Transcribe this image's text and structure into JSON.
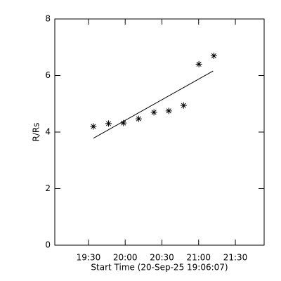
{
  "chart_data": {
    "type": "scatter",
    "xlabel": "Start Time (20-Sep-25 19:06:07)",
    "ylabel": "R/Rs",
    "x": [
      1174,
      1186.4,
      1198.6,
      1211,
      1223.5,
      1235.6,
      1247.7,
      1260.2,
      1272.4
    ],
    "values": [
      4.2,
      4.3,
      4.32,
      4.47,
      4.7,
      4.75,
      4.94,
      6.4,
      6.7
    ],
    "color": "#000000",
    "fit_line": {
      "x": [
        1174,
        1271.8
      ],
      "values": [
        3.78,
        6.16
      ]
    },
    "xlim": [
      1142.5,
      1313.5
    ],
    "xticks": [
      {
        "value": 1170,
        "label": "19:30"
      },
      {
        "value": 1200,
        "label": "20:00"
      },
      {
        "value": 1230,
        "label": "20:30"
      },
      {
        "value": 1260,
        "label": "21:00"
      },
      {
        "value": 1290,
        "label": "21:30"
      }
    ],
    "ylim": [
      0,
      8
    ],
    "yticks": [
      0,
      2,
      4,
      6,
      8
    ]
  }
}
